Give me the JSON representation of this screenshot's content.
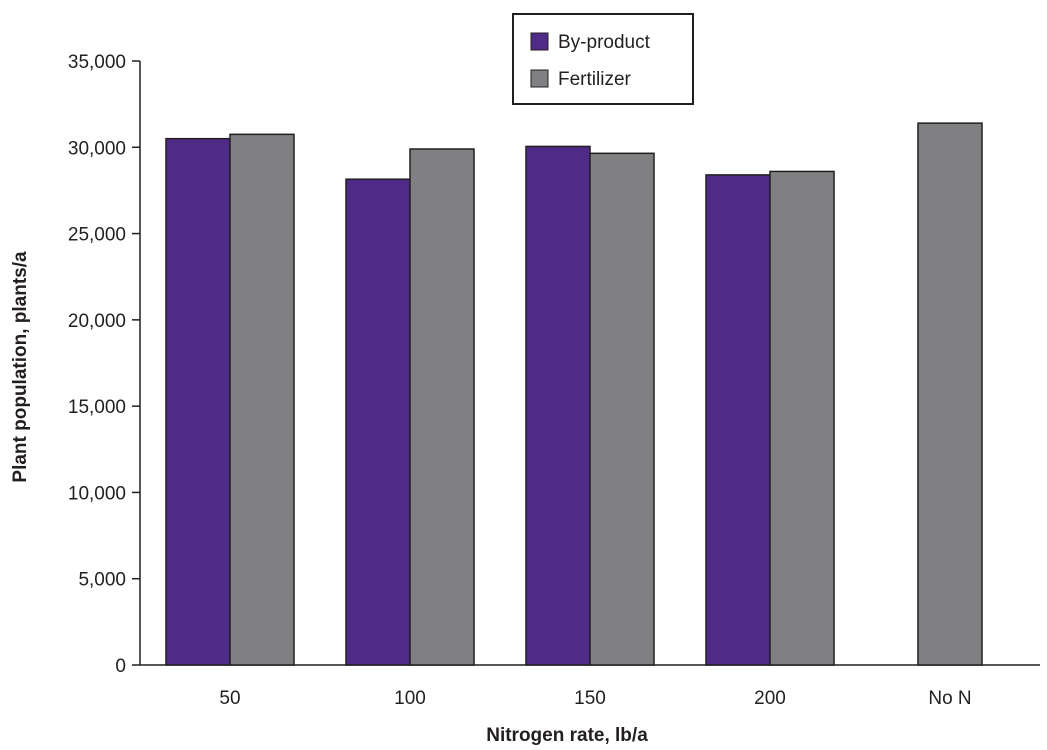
{
  "chart_data": {
    "type": "bar",
    "title": "",
    "xlabel": "Nitrogen rate, lb/a",
    "ylabel": "Plant population, plants/a",
    "categories": [
      "50",
      "100",
      "150",
      "200",
      "No N"
    ],
    "series": [
      {
        "name": "By-product",
        "color": "#4f2a87",
        "values": [
          30500,
          28150,
          30050,
          28400,
          null
        ]
      },
      {
        "name": "Fertilizer",
        "color": "#808083",
        "values": [
          30750,
          29900,
          29650,
          28600,
          31400
        ]
      }
    ],
    "ylim": [
      0,
      35000
    ],
    "yticks": [
      "0",
      "5,000",
      "10,000",
      "15,000",
      "20,000",
      "25,000",
      "30,000",
      "35,000"
    ],
    "grid": false,
    "legend_position": "top-center"
  }
}
